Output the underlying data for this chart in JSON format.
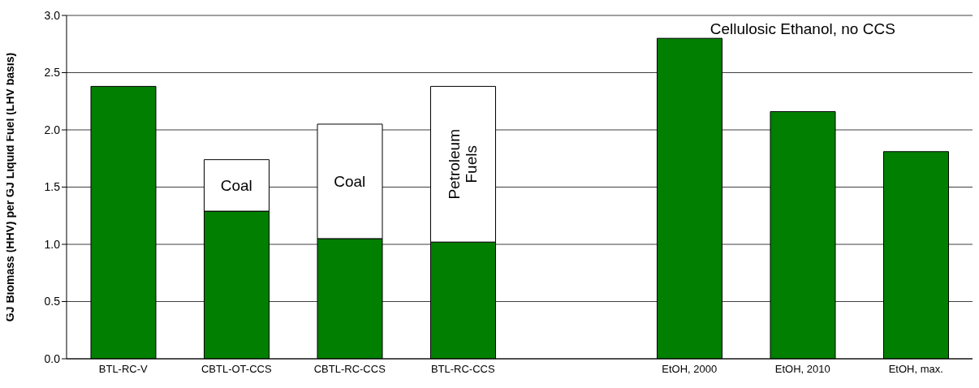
{
  "chart_data": {
    "type": "bar",
    "stacked": true,
    "ylabel": "GJ Biomass (HHV) per GJ Liquid Fuel (LHV basis)",
    "categories": [
      "BTL-RC-V",
      "CBTL-OT-CCS",
      "CBTL-RC-CCS",
      "BTL-RC-CCS",
      null,
      "EtOH, 2000",
      "EtOH, 2010",
      "EtOH, max."
    ],
    "series": [
      {
        "color": "#007f00",
        "values": [
          2.38,
          1.29,
          1.05,
          1.02,
          null,
          2.8,
          2.16,
          1.81
        ]
      },
      {
        "color": "#ffffff",
        "values": [
          null,
          0.45,
          1.0,
          1.36,
          null,
          null,
          null,
          null
        ]
      }
    ],
    "ylim": [
      0,
      3.0
    ],
    "yticks": [
      {
        "value": 0,
        "label": "0.0"
      },
      {
        "value": 0.5,
        "label": "0.5"
      },
      {
        "value": 1,
        "label": "1.0"
      },
      {
        "value": 1.5,
        "label": "1.5"
      },
      {
        "value": 2,
        "label": "2.0"
      },
      {
        "value": 2.5,
        "label": "2.5"
      },
      {
        "value": 3,
        "label": "3.0"
      }
    ],
    "grid": "y",
    "legend": false,
    "annotations": [
      "Coal",
      "Coal",
      "Petroleum Fuels",
      "Cellulosic Ethanol, no CCS"
    ]
  }
}
